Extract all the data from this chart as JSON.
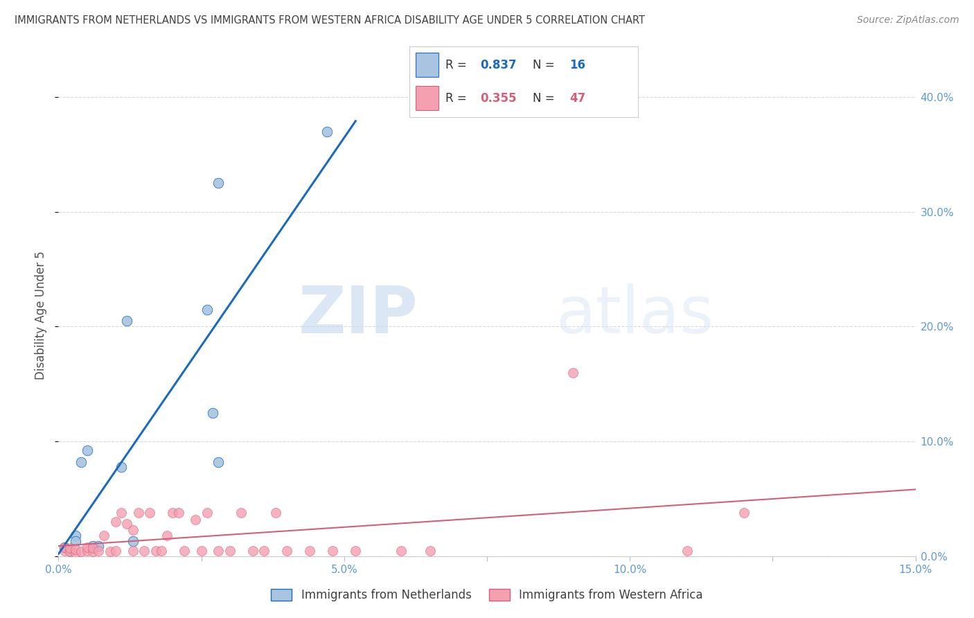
{
  "title": "IMMIGRANTS FROM NETHERLANDS VS IMMIGRANTS FROM WESTERN AFRICA DISABILITY AGE UNDER 5 CORRELATION CHART",
  "source": "Source: ZipAtlas.com",
  "ylabel": "Disability Age Under 5",
  "legend_labels": [
    "Immigrants from Netherlands",
    "Immigrants from Western Africa"
  ],
  "R_netherlands": 0.837,
  "N_netherlands": 16,
  "R_western_africa": 0.355,
  "N_western_africa": 47,
  "color_netherlands": "#a8c4e0",
  "color_western_africa": "#f4a0b0",
  "color_trendline_netherlands": "#1a6bbf",
  "color_trendline_western_africa": "#d45f7a",
  "color_axis_labels": "#5b9bd5",
  "color_title": "#404040",
  "watermark_zip": "ZIP",
  "watermark_atlas": "atlas",
  "xlim": [
    0.0,
    0.15
  ],
  "ylim": [
    0.0,
    0.42
  ],
  "xticks": [
    0.0,
    0.025,
    0.05,
    0.075,
    0.1,
    0.125,
    0.15
  ],
  "xtick_labels": [
    "0.0%",
    "",
    "5.0%",
    "",
    "10.0%",
    "",
    "15.0%"
  ],
  "yticks_right": [
    0.0,
    0.1,
    0.2,
    0.3,
    0.4
  ],
  "ytick_labels_right": [
    "0.0%",
    "10.0%",
    "20.0%",
    "30.0%",
    "40.0%"
  ],
  "netherlands_x": [
    0.001,
    0.002,
    0.003,
    0.003,
    0.004,
    0.005,
    0.006,
    0.007,
    0.011,
    0.012,
    0.013,
    0.026,
    0.027,
    0.028,
    0.028,
    0.047
  ],
  "netherlands_y": [
    0.008,
    0.005,
    0.018,
    0.013,
    0.082,
    0.092,
    0.009,
    0.009,
    0.078,
    0.205,
    0.013,
    0.215,
    0.125,
    0.082,
    0.325,
    0.37
  ],
  "western_africa_x": [
    0.001,
    0.001,
    0.002,
    0.002,
    0.003,
    0.003,
    0.004,
    0.005,
    0.005,
    0.006,
    0.006,
    0.007,
    0.008,
    0.009,
    0.01,
    0.01,
    0.011,
    0.012,
    0.013,
    0.013,
    0.014,
    0.015,
    0.016,
    0.017,
    0.018,
    0.019,
    0.02,
    0.021,
    0.022,
    0.024,
    0.025,
    0.026,
    0.028,
    0.03,
    0.032,
    0.034,
    0.036,
    0.038,
    0.04,
    0.044,
    0.048,
    0.052,
    0.06,
    0.065,
    0.09,
    0.11,
    0.12
  ],
  "western_africa_y": [
    0.005,
    0.008,
    0.004,
    0.007,
    0.003,
    0.006,
    0.004,
    0.005,
    0.008,
    0.004,
    0.007,
    0.005,
    0.018,
    0.004,
    0.005,
    0.03,
    0.038,
    0.028,
    0.023,
    0.005,
    0.038,
    0.005,
    0.038,
    0.005,
    0.005,
    0.018,
    0.038,
    0.038,
    0.005,
    0.032,
    0.005,
    0.038,
    0.005,
    0.005,
    0.038,
    0.005,
    0.005,
    0.038,
    0.005,
    0.005,
    0.005,
    0.005,
    0.005,
    0.005,
    0.16,
    0.005,
    0.038
  ],
  "background_color": "#ffffff",
  "grid_color": "#d8d8d8"
}
